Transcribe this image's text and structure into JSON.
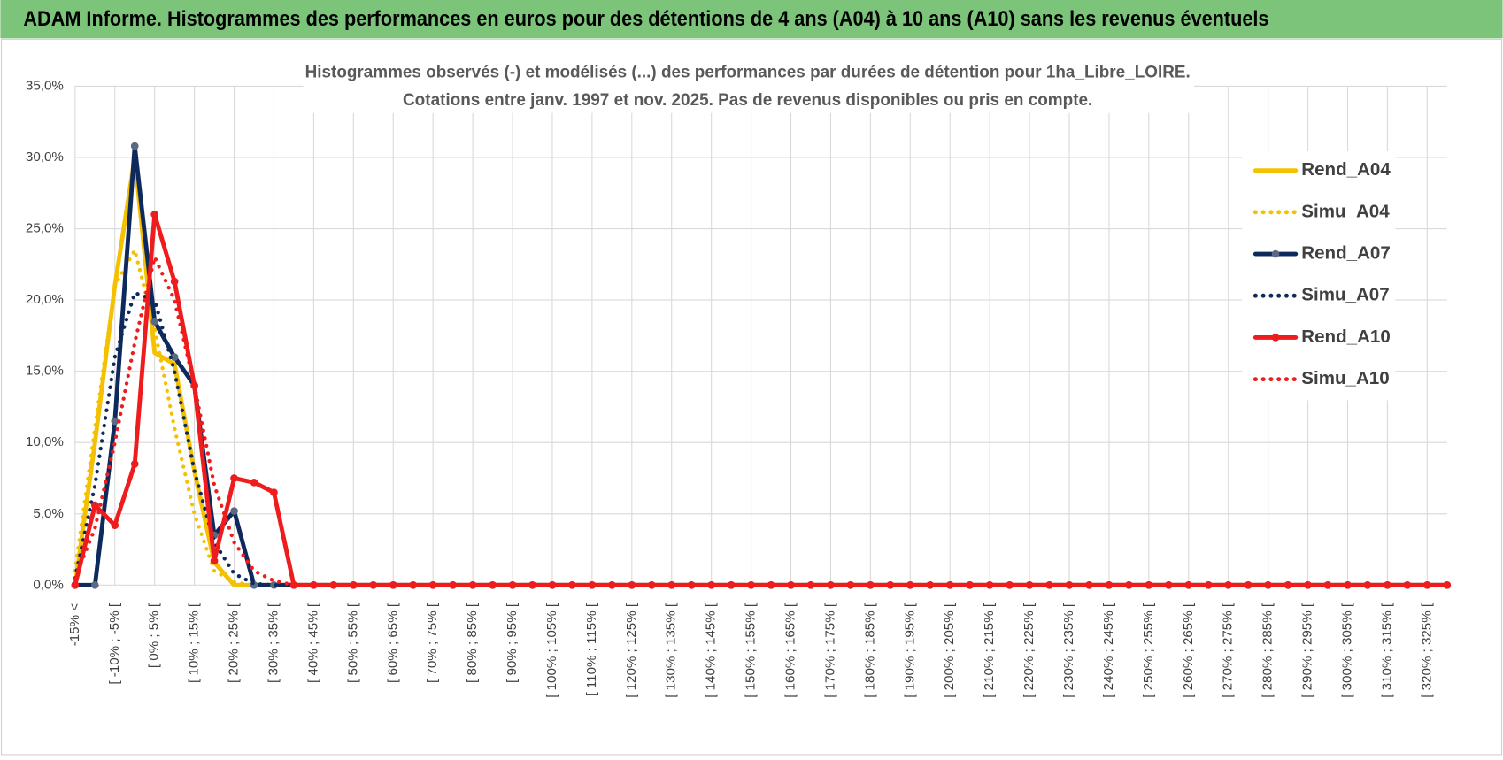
{
  "header": {
    "title": "ADAM Informe. Histogrammes des performances en euros pour des détentions de 4 ans (A04) à 10 ans (A10) sans les revenus éventuels"
  },
  "chart_data": {
    "type": "line",
    "title": "Histogrammes observés (-) et modélisés (...)  des performances par durées de détention pour 1ha_Libre_LOIRE.",
    "subtitle": "Cotations entre janv. 1997 et nov. 2025. Pas de revenus disponibles ou pris en compte.",
    "categories": [
      "-15% <",
      null,
      "[ -10% ; -5% [",
      null,
      "[ 0% ; 5% [",
      null,
      "[ 10% ; 15% [",
      null,
      "[ 20% ; 25% [",
      null,
      "[ 30% ; 35% [",
      null,
      "[ 40% ; 45% [",
      null,
      "[ 50% ; 55% [",
      null,
      "[ 60% ; 65% [",
      null,
      "[ 70% ; 75% [",
      null,
      "[ 80% ; 85% [",
      null,
      "[ 90% ; 95% [",
      null,
      "[ 100% ; 105% [",
      null,
      "[ 110% ; 115% [",
      null,
      "[ 120% ; 125% [",
      null,
      "[ 130% ; 135% [",
      null,
      "[ 140% ; 145% [",
      null,
      "[ 150% ; 155% [",
      null,
      "[ 160% ; 165% [",
      null,
      "[ 170% ; 175% [",
      null,
      "[ 180% ; 185% [",
      null,
      "[ 190% ; 195% [",
      null,
      "[ 200% ; 205% [",
      null,
      "[ 210% ; 215% [",
      null,
      "[ 220% ; 225% [",
      null,
      "[ 230% ; 235% [",
      null,
      "[ 240% ; 245% [",
      null,
      "[ 250% ; 255% [",
      null,
      "[ 260% ; 265% [",
      null,
      "[ 270% ; 275% [",
      null,
      "[ 280% ; 285% [",
      null,
      "[ 290% ; 295% [",
      null,
      "[ 300% ; 305% [",
      null,
      "[ 310% ; 315% [",
      null,
      "[ 320% ; 325% [",
      null
    ],
    "series": [
      {
        "name": "Rend_A04",
        "color": "#f5c000",
        "style": "solid",
        "markers": false,
        "values": [
          0,
          10,
          21,
          30,
          16.3,
          15.5,
          8,
          1.6,
          0,
          0,
          0,
          0,
          0,
          0,
          0,
          0,
          0,
          0,
          0,
          0,
          0,
          0,
          0,
          0,
          0,
          0,
          0,
          0,
          0,
          0,
          0,
          0,
          0,
          0,
          0,
          0,
          0,
          0,
          0,
          0,
          0,
          0,
          0,
          0,
          0,
          0,
          0,
          0,
          0,
          0,
          0,
          0,
          0,
          0,
          0,
          0,
          0,
          0,
          0,
          0,
          0,
          0,
          0,
          0,
          0,
          0,
          0,
          0,
          0,
          0
        ]
      },
      {
        "name": "Simu_A04",
        "color": "#f5c000",
        "style": "dotted",
        "markers": false,
        "values": [
          1,
          11,
          21,
          23.5,
          18,
          11,
          5,
          1,
          0.2,
          0,
          0,
          0,
          0,
          0,
          0,
          0,
          0,
          0,
          0,
          0,
          0,
          0,
          0,
          0,
          0,
          0,
          0,
          0,
          0,
          0,
          0,
          0,
          0,
          0,
          0,
          0,
          0,
          0,
          0,
          0,
          0,
          0,
          0,
          0,
          0,
          0,
          0,
          0,
          0,
          0,
          0,
          0,
          0,
          0,
          0,
          0,
          0,
          0,
          0,
          0,
          0,
          0,
          0,
          0,
          0,
          0,
          0,
          0,
          0,
          0
        ]
      },
      {
        "name": "Rend_A07",
        "color": "#0e2a5c",
        "style": "solid",
        "markers": true,
        "marker_color": "#5a6a80",
        "values": [
          0,
          0,
          11.5,
          30.8,
          18.5,
          16,
          14,
          3.5,
          5.2,
          0,
          0,
          0,
          0,
          0,
          0,
          0,
          0,
          0,
          0,
          0,
          0,
          0,
          0,
          0,
          0,
          0,
          0,
          0,
          0,
          0,
          0,
          0,
          0,
          0,
          0,
          0,
          0,
          0,
          0,
          0,
          0,
          0,
          0,
          0,
          0,
          0,
          0,
          0,
          0,
          0,
          0,
          0,
          0,
          0,
          0,
          0,
          0,
          0,
          0,
          0,
          0,
          0,
          0,
          0,
          0,
          0,
          0,
          0,
          0,
          0
        ]
      },
      {
        "name": "Simu_A07",
        "color": "#0e2a5c",
        "style": "dotted",
        "markers": false,
        "values": [
          0.5,
          7,
          16,
          20.5,
          20,
          15,
          8,
          3,
          0.8,
          0.1,
          0,
          0,
          0,
          0,
          0,
          0,
          0,
          0,
          0,
          0,
          0,
          0,
          0,
          0,
          0,
          0,
          0,
          0,
          0,
          0,
          0,
          0,
          0,
          0,
          0,
          0,
          0,
          0,
          0,
          0,
          0,
          0,
          0,
          0,
          0,
          0,
          0,
          0,
          0,
          0,
          0,
          0,
          0,
          0,
          0,
          0,
          0,
          0,
          0,
          0,
          0,
          0,
          0,
          0,
          0,
          0,
          0,
          0,
          0,
          0
        ]
      },
      {
        "name": "Rend_A10",
        "color": "#ee1c1c",
        "style": "solid",
        "markers": true,
        "marker_color": "#ee1c1c",
        "values": [
          0,
          5.6,
          4.2,
          8.5,
          26,
          21.3,
          14,
          1.7,
          7.5,
          7.2,
          6.5,
          0,
          0,
          0,
          0,
          0,
          0,
          0,
          0,
          0,
          0,
          0,
          0,
          0,
          0,
          0,
          0,
          0,
          0,
          0,
          0,
          0,
          0,
          0,
          0,
          0,
          0,
          0,
          0,
          0,
          0,
          0,
          0,
          0,
          0,
          0,
          0,
          0,
          0,
          0,
          0,
          0,
          0,
          0,
          0,
          0,
          0,
          0,
          0,
          0,
          0,
          0,
          0,
          0,
          0,
          0,
          0,
          0,
          0,
          0
        ]
      },
      {
        "name": "Simu_A10",
        "color": "#ee1c1c",
        "style": "dotted",
        "markers": false,
        "values": [
          0.5,
          4,
          10,
          17,
          23,
          20,
          14,
          7,
          3,
          1,
          0.3,
          0,
          0,
          0,
          0,
          0,
          0,
          0,
          0,
          0,
          0,
          0,
          0,
          0,
          0,
          0,
          0,
          0,
          0,
          0,
          0,
          0,
          0,
          0,
          0,
          0,
          0,
          0,
          0,
          0,
          0,
          0,
          0,
          0,
          0,
          0,
          0,
          0,
          0,
          0,
          0,
          0,
          0,
          0,
          0,
          0,
          0,
          0,
          0,
          0,
          0,
          0,
          0,
          0,
          0,
          0,
          0,
          0,
          0,
          0
        ]
      }
    ],
    "ylim": [
      0,
      35
    ],
    "yticks": [
      {
        "value": 0,
        "label": "0,0%"
      },
      {
        "value": 5,
        "label": "5,0%"
      },
      {
        "value": 10,
        "label": "10,0%"
      },
      {
        "value": 15,
        "label": "15,0%"
      },
      {
        "value": 20,
        "label": "20,0%"
      },
      {
        "value": 25,
        "label": "25,0%"
      },
      {
        "value": 30,
        "label": "30,0%"
      },
      {
        "value": 35,
        "label": "35,0%"
      }
    ],
    "grid": true,
    "legend": "right"
  }
}
